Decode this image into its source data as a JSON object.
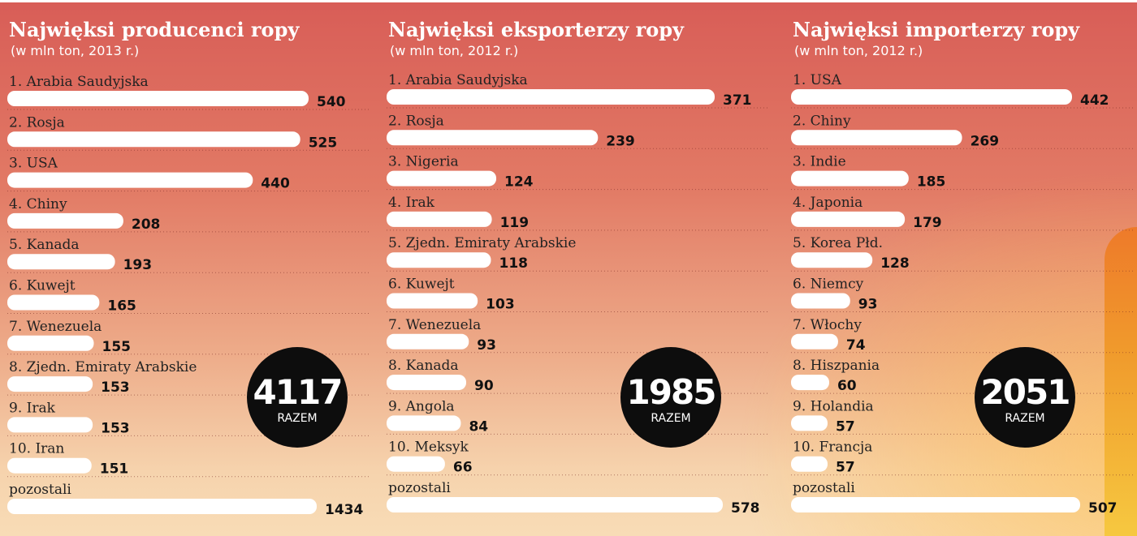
{
  "chart_data": [
    {
      "type": "bar",
      "title": "Najwięksi producenci ropy",
      "subtitle": "(w mln ton, 2013 r.)",
      "categories": [
        "1. Arabia Saudyjska",
        "2. Rosja",
        "3. USA",
        "4. Chiny",
        "5. Kanada",
        "6. Kuwejt",
        "7. Wenezuela",
        "8. Zjedn. Emiraty Arabskie",
        "9. Irak",
        "10. Iran",
        "pozostali"
      ],
      "values": [
        540,
        525,
        440,
        208,
        193,
        165,
        155,
        153,
        153,
        151,
        1434
      ],
      "total": "4117",
      "total_label": "RAZEM"
    },
    {
      "type": "bar",
      "title": "Najwięksi eksporterzy ropy",
      "subtitle": "(w mln ton, 2012 r.)",
      "categories": [
        "1. Arabia Saudyjska",
        "2. Rosja",
        "3. Nigeria",
        "4. Irak",
        "5. Zjedn. Emiraty Arabskie",
        "6. Kuwejt",
        "7. Wenezuela",
        "8. Kanada",
        "9. Angola",
        "10. Meksyk",
        "pozostali"
      ],
      "values": [
        371,
        239,
        124,
        119,
        118,
        103,
        93,
        90,
        84,
        66,
        578
      ],
      "total": "1985",
      "total_label": "RAZEM"
    },
    {
      "type": "bar",
      "title": "Najwięksi importerzy ropy",
      "subtitle": "(w mln ton, 2012 r.)",
      "categories": [
        "1. USA",
        "2. Chiny",
        "3. Indie",
        "4. Japonia",
        "5. Korea Płd.",
        "6. Niemcy",
        "7. Włochy",
        "8. Hiszpania",
        "9. Holandia",
        "10. Francja",
        "pozostali"
      ],
      "values": [
        442,
        269,
        185,
        179,
        128,
        93,
        74,
        60,
        57,
        57,
        507
      ],
      "total": "2051",
      "total_label": "RAZEM"
    }
  ]
}
